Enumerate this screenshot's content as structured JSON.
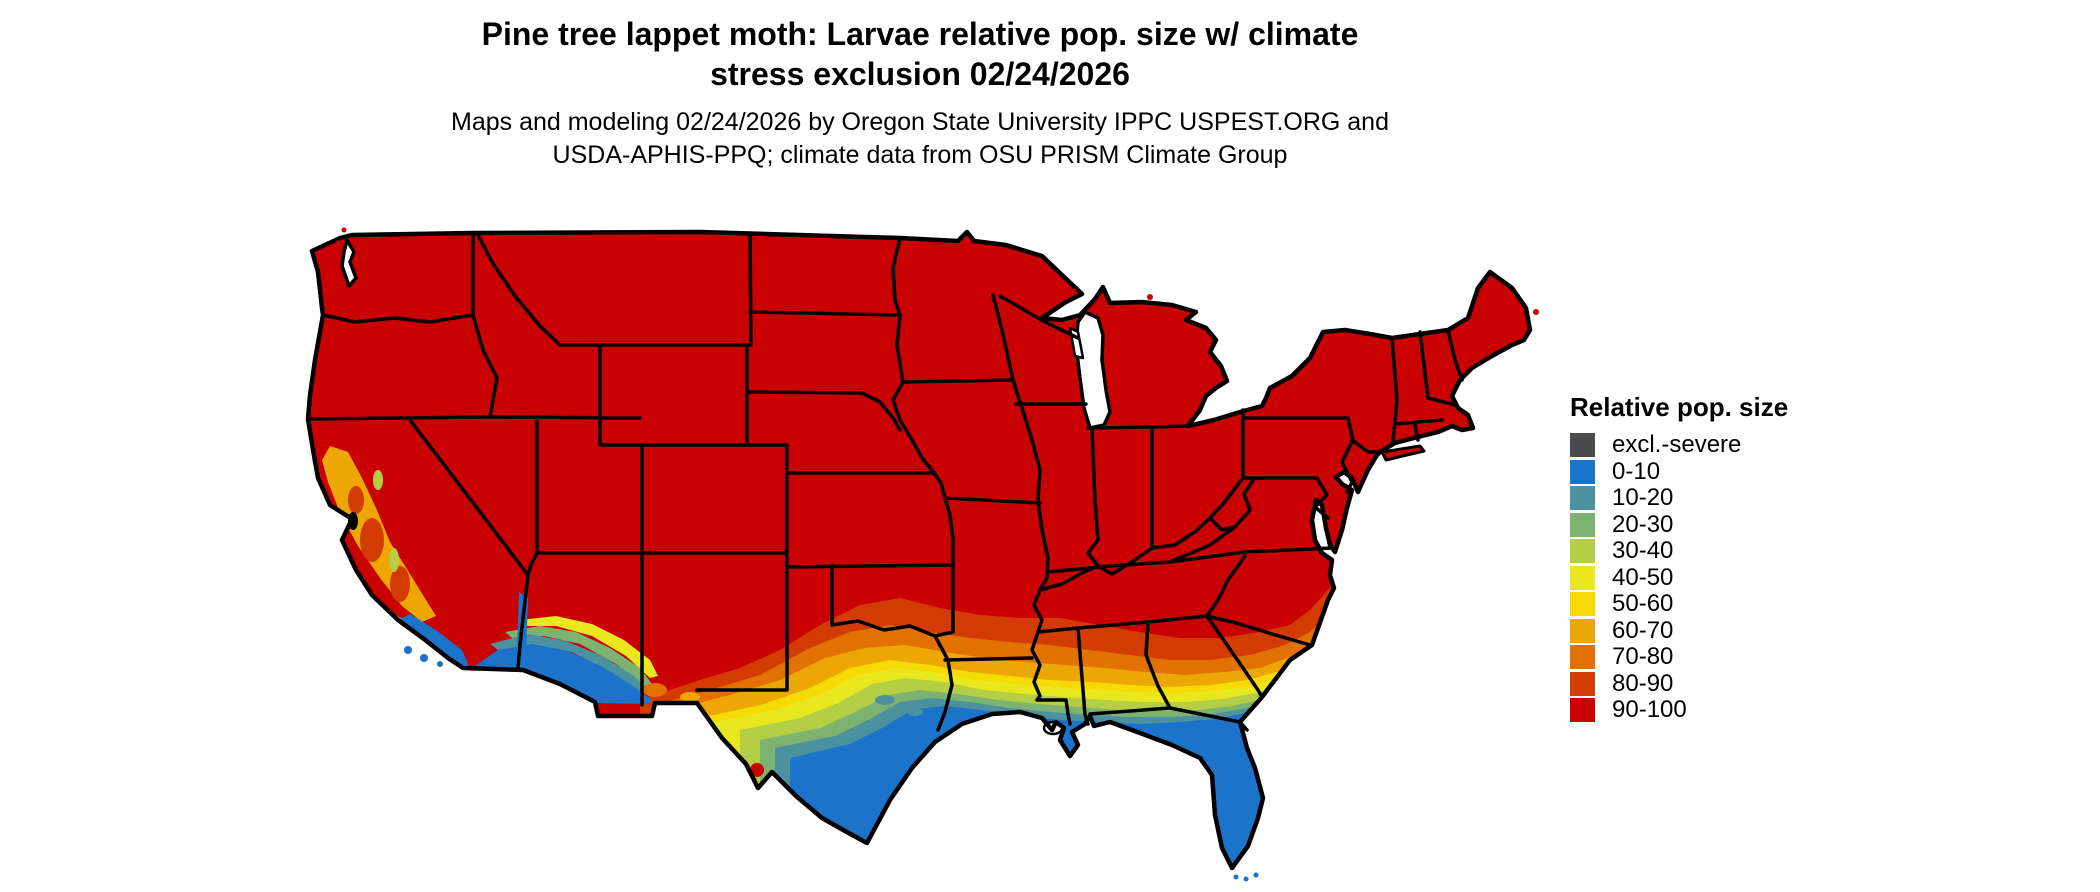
{
  "title": {
    "line1": "Pine tree lappet moth: Larvae relative pop. size w/ climate",
    "line2": "stress exclusion 02/24/2026"
  },
  "subtitle": {
    "line1": "Maps and modeling 02/24/2026 by Oregon State University IPPC USPEST.ORG and",
    "line2": "USDA-APHIS-PPQ; climate data from OSU PRISM Climate Group"
  },
  "legend": {
    "title": "Relative pop. size",
    "items": [
      {
        "label": "excl.-severe",
        "color": "#4a4a4c"
      },
      {
        "label": "0-10",
        "color": "#1b73ca"
      },
      {
        "label": "10-20",
        "color": "#4b929e"
      },
      {
        "label": "20-30",
        "color": "#7db370"
      },
      {
        "label": "30-40",
        "color": "#b4cf45"
      },
      {
        "label": "40-50",
        "color": "#e9e81e"
      },
      {
        "label": "50-60",
        "color": "#f5da05"
      },
      {
        "label": "60-70",
        "color": "#eca705"
      },
      {
        "label": "70-80",
        "color": "#e17101"
      },
      {
        "label": "80-90",
        "color": "#d23c02"
      },
      {
        "label": "90-100",
        "color": "#ca0103"
      }
    ]
  },
  "map": {
    "region": "Continental United States",
    "border_color": "#000000",
    "water_color": "#ffffff",
    "map_summary": [
      {
        "area": "Northern and central US (most states)",
        "class": "90-100"
      },
      {
        "area": "Southern plains through Carolinas transition zone",
        "class": "80-90 to 40-50 bands"
      },
      {
        "area": "Central Texas / Gulf interior",
        "class": "30-40 and 20-30"
      },
      {
        "area": "Gulf Coast, south Texas, Florida, coastal southern California, southwest Arizona deserts",
        "class": "0-10"
      },
      {
        "area": "California Central Valley and coast ranges",
        "class": "60-70 with 80-90 pockets"
      }
    ]
  }
}
